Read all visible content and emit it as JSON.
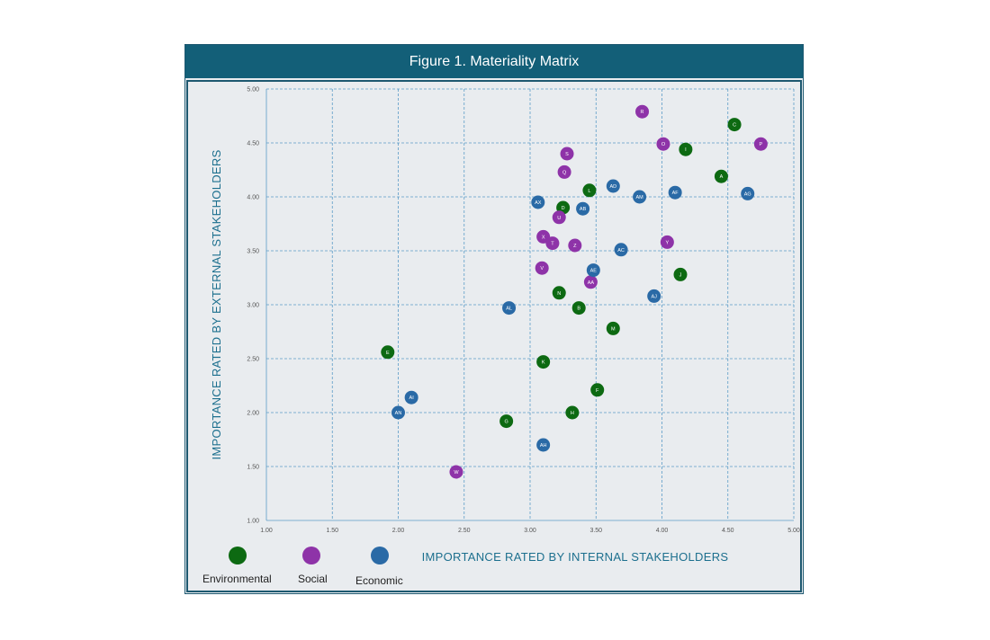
{
  "figure_title": "Figure 1. Materiality Matrix",
  "colors": {
    "Environmental": "#0d6a12",
    "Social": "#8e33a8",
    "Economic": "#2a6aa6"
  },
  "chart_data": {
    "type": "scatter",
    "title": "Figure 1. Materiality Matrix",
    "xlabel": "IMPORTANCE RATED BY INTERNAL STAKEHOLDERS",
    "ylabel": "IMPORTANCE RATED BY EXTERNAL STAKEHOLDERS",
    "xlim": [
      1.0,
      5.0
    ],
    "ylim": [
      1.0,
      5.0
    ],
    "x_ticks": [
      "1.00",
      "1.50",
      "2.00",
      "2.50",
      "3.00",
      "3.50",
      "4.00",
      "4.50",
      "5.00"
    ],
    "y_ticks": [
      "1.00",
      "1.50",
      "2.00",
      "2.50",
      "3.00",
      "3.50",
      "4.00",
      "4.50",
      "5.00"
    ],
    "grid": true,
    "legend_position": "bottom-left",
    "series": [
      {
        "name": "Environmental",
        "points": [
          {
            "label": "A",
            "x": 4.45,
            "y": 4.19
          },
          {
            "label": "B",
            "x": 3.37,
            "y": 2.97
          },
          {
            "label": "C",
            "x": 4.55,
            "y": 4.67
          },
          {
            "label": "D",
            "x": 3.25,
            "y": 3.9
          },
          {
            "label": "E",
            "x": 1.92,
            "y": 2.56
          },
          {
            "label": "F",
            "x": 3.51,
            "y": 2.21
          },
          {
            "label": "G",
            "x": 2.82,
            "y": 1.92
          },
          {
            "label": "H",
            "x": 3.32,
            "y": 2.0
          },
          {
            "label": "I",
            "x": 4.18,
            "y": 4.44
          },
          {
            "label": "J",
            "x": 4.14,
            "y": 3.28
          },
          {
            "label": "K",
            "x": 3.1,
            "y": 2.47
          },
          {
            "label": "L",
            "x": 3.45,
            "y": 4.06
          },
          {
            "label": "M",
            "x": 3.63,
            "y": 2.78
          },
          {
            "label": "N",
            "x": 3.22,
            "y": 3.11
          }
        ]
      },
      {
        "name": "Social",
        "points": [
          {
            "label": "P",
            "x": 4.75,
            "y": 4.49
          },
          {
            "label": "O",
            "x": 4.01,
            "y": 4.49
          },
          {
            "label": "R",
            "x": 3.85,
            "y": 4.79
          },
          {
            "label": "S",
            "x": 3.28,
            "y": 4.4
          },
          {
            "label": "Q",
            "x": 3.26,
            "y": 4.23
          },
          {
            "label": "U",
            "x": 3.22,
            "y": 3.81
          },
          {
            "label": "X",
            "x": 3.1,
            "y": 3.63
          },
          {
            "label": "T",
            "x": 3.17,
            "y": 3.57
          },
          {
            "label": "Z",
            "x": 3.34,
            "y": 3.55
          },
          {
            "label": "Y",
            "x": 4.04,
            "y": 3.58
          },
          {
            "label": "V",
            "x": 3.09,
            "y": 3.34
          },
          {
            "label": "AA",
            "x": 3.46,
            "y": 3.21
          },
          {
            "label": "W",
            "x": 2.44,
            "y": 1.45
          }
        ]
      },
      {
        "name": "Economic",
        "points": [
          {
            "label": "AG",
            "x": 4.65,
            "y": 4.03
          },
          {
            "label": "AF",
            "x": 4.1,
            "y": 4.04
          },
          {
            "label": "AD",
            "x": 3.63,
            "y": 4.1
          },
          {
            "label": "AM",
            "x": 3.83,
            "y": 4.0
          },
          {
            "label": "AX",
            "x": 3.06,
            "y": 3.95
          },
          {
            "label": "AB",
            "x": 3.4,
            "y": 3.89
          },
          {
            "label": "AC",
            "x": 3.69,
            "y": 3.51
          },
          {
            "label": "AE",
            "x": 3.48,
            "y": 3.32
          },
          {
            "label": "AJ",
            "x": 3.94,
            "y": 3.08
          },
          {
            "label": "AL",
            "x": 2.84,
            "y": 2.97
          },
          {
            "label": "AI",
            "x": 2.1,
            "y": 2.14
          },
          {
            "label": "AN",
            "x": 2.0,
            "y": 2.0
          },
          {
            "label": "AH",
            "x": 3.1,
            "y": 1.7
          }
        ]
      }
    ]
  }
}
